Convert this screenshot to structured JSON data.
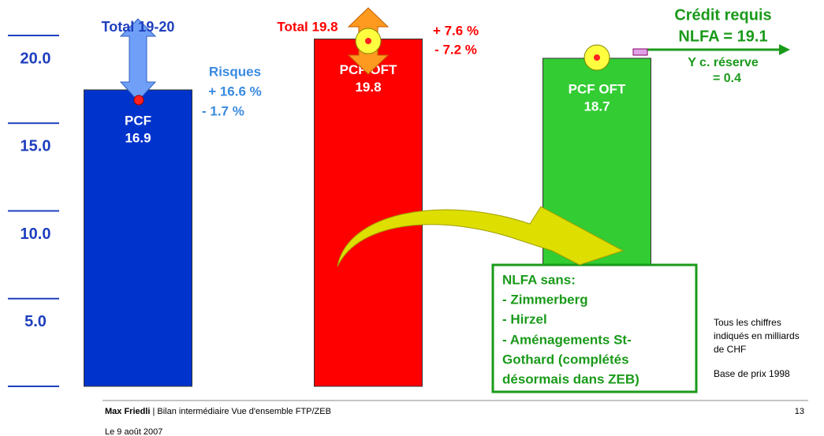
{
  "chart_data": {
    "type": "bar",
    "categories": [
      "PCF",
      "PCF OFT",
      "PCF OFT"
    ],
    "values": [
      16.9,
      19.8,
      18.7
    ],
    "colors": [
      "#0033cc",
      "#ff0000",
      "#33cc33"
    ],
    "ylim": [
      0,
      22
    ],
    "yticks": [
      {
        "value": 5,
        "label": "5.0"
      },
      {
        "value": 10,
        "label": "10.0"
      },
      {
        "value": 15,
        "label": "15.0"
      },
      {
        "value": 20,
        "label": "20.0"
      }
    ],
    "annotations": [
      "Total 19-20",
      "Risques",
      "+ 16.6 %",
      "-  1.7 %",
      "Total 19.8",
      "+ 7.6 %",
      "- 7.2 %",
      "Crédit requis",
      "NLFA = 19.1",
      "Y c. réserve",
      "= 0.4",
      "NLFA sans:",
      "- Zimmerberg",
      "- Hirzel",
      "- Aménagements St-",
      "Gothard  (complétés",
      "désormais dans ZEB)",
      "Tous les chiffres",
      "indiqués en milliards",
      "de CHF",
      "Base de prix 1998"
    ]
  },
  "footer": {
    "author": "Max Friedli",
    "subtitle": "| Bilan intermédiaire Vue d'ensemble FTP/ZEB",
    "page": "13",
    "date": "Le 9 août 2007"
  }
}
